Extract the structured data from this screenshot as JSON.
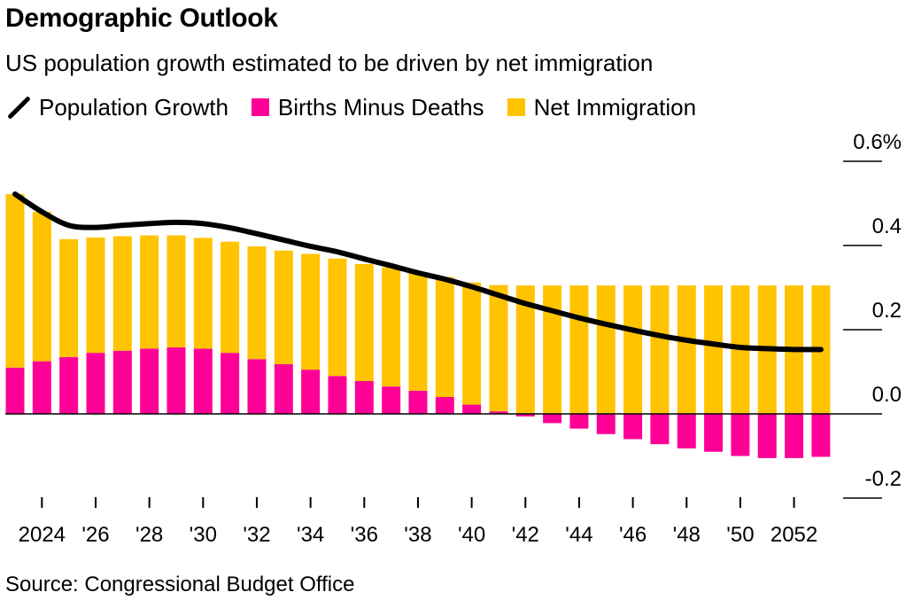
{
  "title": "Demographic Outlook",
  "subtitle": "US population growth estimated to be driven by net immigration",
  "source": "Source: Congressional Budget Office",
  "colors": {
    "births_minus_deaths": "#ff0096",
    "net_immigration": "#ffc300",
    "population_growth": "#000000"
  },
  "chart_data": {
    "type": "bar",
    "title": "Demographic Outlook",
    "subtitle": "US population growth estimated to be driven by net immigration",
    "stacked": true,
    "categories": [
      2023,
      2024,
      2025,
      2026,
      2027,
      2028,
      2029,
      2030,
      2031,
      2032,
      2033,
      2034,
      2035,
      2036,
      2037,
      2038,
      2039,
      2040,
      2041,
      2042,
      2043,
      2044,
      2045,
      2046,
      2047,
      2048,
      2049,
      2050,
      2051,
      2052,
      2053
    ],
    "series": [
      {
        "name": "Births Minus Deaths",
        "kind": "bar",
        "color": "#ff0096",
        "values": [
          0.11,
          0.125,
          0.135,
          0.145,
          0.15,
          0.155,
          0.158,
          0.155,
          0.145,
          0.13,
          0.118,
          0.105,
          0.09,
          0.078,
          0.065,
          0.055,
          0.04,
          0.022,
          0.006,
          -0.006,
          -0.022,
          -0.035,
          -0.048,
          -0.06,
          -0.072,
          -0.082,
          -0.09,
          -0.1,
          -0.105,
          -0.105,
          -0.102
        ]
      },
      {
        "name": "Net Immigration",
        "kind": "bar",
        "color": "#ffc300",
        "values": [
          0.412,
          0.355,
          0.28,
          0.274,
          0.272,
          0.269,
          0.266,
          0.263,
          0.264,
          0.268,
          0.27,
          0.275,
          0.279,
          0.278,
          0.283,
          0.28,
          0.285,
          0.29,
          0.3,
          0.305,
          0.305,
          0.305,
          0.305,
          0.305,
          0.305,
          0.305,
          0.305,
          0.305,
          0.305,
          0.305,
          0.305
        ]
      },
      {
        "name": "Population Growth",
        "kind": "line",
        "color": "#000000",
        "values": [
          0.522,
          0.48,
          0.448,
          0.443,
          0.448,
          0.452,
          0.455,
          0.452,
          0.442,
          0.428,
          0.413,
          0.398,
          0.385,
          0.368,
          0.352,
          0.335,
          0.32,
          0.302,
          0.282,
          0.262,
          0.245,
          0.228,
          0.213,
          0.199,
          0.186,
          0.175,
          0.166,
          0.158,
          0.155,
          0.153,
          0.153
        ]
      }
    ],
    "x_tick_labels": [
      "2024",
      "'26",
      "'28",
      "'30",
      "'32",
      "'34",
      "'36",
      "'38",
      "'40",
      "'42",
      "'44",
      "'46",
      "'48",
      "'50",
      "2052"
    ],
    "x_ticks_at": [
      2024,
      2026,
      2028,
      2030,
      2032,
      2034,
      2036,
      2038,
      2040,
      2042,
      2044,
      2046,
      2048,
      2050,
      2052
    ],
    "y_tick_labels": [
      "0.6%",
      "0.4",
      "0.2",
      "0.0",
      "-0.2"
    ],
    "y_ticks": [
      0.6,
      0.4,
      0.2,
      0.0,
      -0.2
    ],
    "ylim": [
      -0.2,
      0.6
    ],
    "legend": "top-left"
  }
}
